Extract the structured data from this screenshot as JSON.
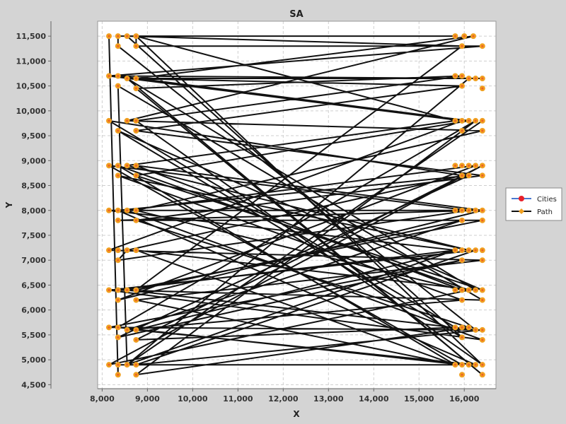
{
  "chart_data": {
    "type": "scatter",
    "title": "SA",
    "xlabel": "X",
    "ylabel": "Y",
    "xlim": [
      7900,
      16700
    ],
    "ylim": [
      4420,
      11800
    ],
    "grid": true,
    "legend_position": "right",
    "x_ticks": [
      8000,
      9000,
      10000,
      11000,
      12000,
      13000,
      14000,
      15000,
      16000
    ],
    "x_tick_labels": [
      "8,000",
      "9,000",
      "10,000",
      "11,000",
      "12,000",
      "13,000",
      "14,000",
      "15,000",
      "16,000"
    ],
    "y_ticks": [
      4500,
      5000,
      5500,
      6000,
      6500,
      7000,
      7500,
      8000,
      8500,
      9000,
      9500,
      10000,
      10500,
      11000,
      11500
    ],
    "y_tick_labels": [
      "4,500",
      "5,000",
      "5,500",
      "6,000",
      "6,500",
      "7,000",
      "7,500",
      "8,000",
      "8,500",
      "9,000",
      "9,500",
      "10,000",
      "10,500",
      "11,000",
      "11,500"
    ],
    "series": [
      {
        "name": "Cities",
        "color": "#e8202a",
        "marker": "circle",
        "points": [
          [
            8150,
            11500
          ],
          [
            8350,
            11500
          ],
          [
            8550,
            11500
          ],
          [
            8750,
            11500
          ],
          [
            8350,
            11300
          ],
          [
            8750,
            11300
          ],
          [
            8150,
            10700
          ],
          [
            8350,
            10700
          ],
          [
            8550,
            10650
          ],
          [
            8750,
            10650
          ],
          [
            8350,
            10500
          ],
          [
            8750,
            10450
          ],
          [
            8150,
            9800
          ],
          [
            8350,
            9600
          ],
          [
            8550,
            9800
          ],
          [
            8750,
            9800
          ],
          [
            8750,
            9600
          ],
          [
            8150,
            8900
          ],
          [
            8350,
            8900
          ],
          [
            8350,
            8700
          ],
          [
            8550,
            8900
          ],
          [
            8750,
            8900
          ],
          [
            8750,
            8700
          ],
          [
            8150,
            8000
          ],
          [
            8350,
            8000
          ],
          [
            8350,
            7800
          ],
          [
            8550,
            8000
          ],
          [
            8750,
            8000
          ],
          [
            8750,
            7800
          ],
          [
            8150,
            7200
          ],
          [
            8350,
            7200
          ],
          [
            8350,
            7000
          ],
          [
            8550,
            7200
          ],
          [
            8750,
            7200
          ],
          [
            8150,
            6400
          ],
          [
            8350,
            6400
          ],
          [
            8350,
            6200
          ],
          [
            8550,
            6400
          ],
          [
            8750,
            6400
          ],
          [
            8750,
            6200
          ],
          [
            8150,
            5650
          ],
          [
            8350,
            5650
          ],
          [
            8350,
            5450
          ],
          [
            8550,
            5600
          ],
          [
            8750,
            5600
          ],
          [
            8750,
            5400
          ],
          [
            8150,
            4900
          ],
          [
            8350,
            4900
          ],
          [
            8350,
            4700
          ],
          [
            8550,
            4900
          ],
          [
            8750,
            4900
          ],
          [
            8750,
            4700
          ],
          [
            15800,
            11500
          ],
          [
            16000,
            11500
          ],
          [
            16200,
            11500
          ],
          [
            15950,
            11300
          ],
          [
            16400,
            11300
          ],
          [
            15800,
            10700
          ],
          [
            15950,
            10700
          ],
          [
            16100,
            10650
          ],
          [
            16250,
            10650
          ],
          [
            16400,
            10650
          ],
          [
            15950,
            10500
          ],
          [
            16400,
            10450
          ],
          [
            15800,
            9800
          ],
          [
            15950,
            9800
          ],
          [
            16100,
            9800
          ],
          [
            16250,
            9800
          ],
          [
            16400,
            9800
          ],
          [
            15950,
            9600
          ],
          [
            16400,
            9600
          ],
          [
            15800,
            8900
          ],
          [
            15950,
            8900
          ],
          [
            16100,
            8900
          ],
          [
            16250,
            8900
          ],
          [
            16400,
            8900
          ],
          [
            15950,
            8700
          ],
          [
            16100,
            8700
          ],
          [
            16400,
            8700
          ],
          [
            15800,
            8000
          ],
          [
            15950,
            8000
          ],
          [
            16100,
            8000
          ],
          [
            16250,
            8000
          ],
          [
            16400,
            8000
          ],
          [
            15950,
            7800
          ],
          [
            16400,
            7800
          ],
          [
            15800,
            7200
          ],
          [
            15950,
            7200
          ],
          [
            16100,
            7200
          ],
          [
            16250,
            7200
          ],
          [
            16400,
            7200
          ],
          [
            15950,
            7000
          ],
          [
            16400,
            7000
          ],
          [
            15800,
            6400
          ],
          [
            15950,
            6400
          ],
          [
            16100,
            6400
          ],
          [
            16250,
            6400
          ],
          [
            16400,
            6400
          ],
          [
            15950,
            6200
          ],
          [
            16400,
            6200
          ],
          [
            15800,
            5650
          ],
          [
            15950,
            5650
          ],
          [
            16100,
            5650
          ],
          [
            16250,
            5600
          ],
          [
            16400,
            5600
          ],
          [
            15950,
            5450
          ],
          [
            16400,
            5400
          ],
          [
            15800,
            4900
          ],
          [
            15950,
            4900
          ],
          [
            16100,
            4900
          ],
          [
            16250,
            4900
          ],
          [
            16400,
            4900
          ],
          [
            15950,
            4700
          ],
          [
            16400,
            4700
          ]
        ]
      },
      {
        "name": "Path",
        "color": "#111111",
        "marker_color": "#f0a020",
        "marker": "diamond",
        "points": [
          [
            8150,
            11500
          ],
          [
            8350,
            4700
          ],
          [
            8350,
            4900
          ],
          [
            15800,
            4900
          ],
          [
            8750,
            6200
          ],
          [
            16400,
            7000
          ],
          [
            8150,
            7200
          ],
          [
            15950,
            9800
          ],
          [
            8150,
            10700
          ],
          [
            16400,
            11300
          ],
          [
            8750,
            11300
          ],
          [
            8750,
            11500
          ],
          [
            15800,
            11500
          ],
          [
            8350,
            11500
          ],
          [
            8350,
            11300
          ],
          [
            16250,
            5600
          ],
          [
            8550,
            6400
          ],
          [
            16400,
            7800
          ],
          [
            8350,
            7800
          ],
          [
            16250,
            8000
          ],
          [
            8150,
            8000
          ],
          [
            15800,
            7200
          ],
          [
            8350,
            6400
          ],
          [
            16400,
            6200
          ],
          [
            8350,
            10500
          ],
          [
            8550,
            4900
          ],
          [
            16100,
            10650
          ],
          [
            8550,
            10650
          ],
          [
            15950,
            10500
          ],
          [
            8750,
            9600
          ],
          [
            16400,
            8700
          ],
          [
            8750,
            7800
          ],
          [
            16100,
            5650
          ],
          [
            8750,
            4700
          ],
          [
            16250,
            9800
          ],
          [
            8350,
            5650
          ],
          [
            15950,
            4900
          ],
          [
            8150,
            8900
          ],
          [
            16100,
            8000
          ],
          [
            8350,
            7000
          ],
          [
            8550,
            7200
          ],
          [
            15950,
            8700
          ],
          [
            8150,
            9800
          ],
          [
            15800,
            5650
          ],
          [
            8750,
            5400
          ],
          [
            16400,
            8900
          ],
          [
            8150,
            4900
          ],
          [
            16100,
            6400
          ],
          [
            8350,
            8900
          ],
          [
            15800,
            4900
          ],
          [
            8750,
            7200
          ],
          [
            16250,
            6400
          ],
          [
            8550,
            10650
          ],
          [
            16400,
            4700
          ],
          [
            8750,
            10450
          ],
          [
            15950,
            10700
          ],
          [
            8750,
            9800
          ],
          [
            16400,
            4900
          ],
          [
            8750,
            11500
          ],
          [
            15800,
            9800
          ],
          [
            8550,
            8900
          ],
          [
            16100,
            7200
          ],
          [
            8350,
            8700
          ],
          [
            15950,
            6200
          ],
          [
            8550,
            5600
          ],
          [
            15950,
            7800
          ],
          [
            8750,
            6400
          ],
          [
            15950,
            11300
          ],
          [
            8550,
            11500
          ],
          [
            15950,
            5450
          ],
          [
            8350,
            9600
          ],
          [
            16400,
            6400
          ],
          [
            8750,
            8700
          ],
          [
            16100,
            9800
          ],
          [
            8350,
            10700
          ],
          [
            16400,
            10650
          ],
          [
            8750,
            10650
          ],
          [
            16200,
            11500
          ],
          [
            8550,
            9800
          ],
          [
            16400,
            9600
          ],
          [
            8750,
            8000
          ],
          [
            15950,
            6400
          ],
          [
            8750,
            8900
          ],
          [
            16400,
            8000
          ],
          [
            8350,
            6200
          ],
          [
            16250,
            8900
          ],
          [
            8550,
            8000
          ],
          [
            16400,
            5400
          ],
          [
            8150,
            6400
          ],
          [
            16250,
            7200
          ],
          [
            8750,
            4900
          ],
          [
            16400,
            5600
          ],
          [
            8150,
            5650
          ],
          [
            15950,
            7000
          ],
          [
            8350,
            5450
          ],
          [
            16100,
            8700
          ],
          [
            8350,
            8000
          ],
          [
            16250,
            4900
          ],
          [
            8750,
            5600
          ],
          [
            15800,
            7200
          ],
          [
            8550,
            4900
          ],
          [
            16400,
            9800
          ]
        ]
      }
    ]
  }
}
